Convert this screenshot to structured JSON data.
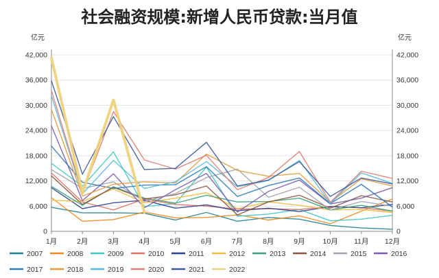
{
  "chart_data": {
    "type": "line",
    "title": "社会融资规模:新增人民币贷款:当月值",
    "unit_left": "亿元",
    "unit_right": "亿元",
    "categories": [
      "1月",
      "2月",
      "3月",
      "4月",
      "5月",
      "6月",
      "7月",
      "8月",
      "9月",
      "10月",
      "11月",
      "12月"
    ],
    "ylim": [
      0,
      42000
    ],
    "yticks": [
      0,
      6000,
      12000,
      18000,
      24000,
      30000,
      36000,
      42000
    ],
    "ytick_labels": [
      "0",
      "6,000",
      "12,000",
      "18,000",
      "24,000",
      "30,000",
      "36,000",
      "42,000"
    ],
    "grid": true,
    "legend_position": "bottom",
    "series": [
      {
        "name": "2007",
        "color": "#1f7f8f",
        "values": [
          5700,
          4400,
          4400,
          4300,
          2700,
          4500,
          2400,
          3300,
          2900,
          1400,
          800,
          500
        ]
      },
      {
        "name": "2008",
        "color": "#f0871a",
        "values": [
          8000,
          2400,
          2800,
          4600,
          3200,
          3300,
          3900,
          2700,
          3700,
          1800,
          4800,
          7700
        ]
      },
      {
        "name": "2009",
        "color": "#3fc6c6",
        "values": [
          16200,
          10700,
          18900,
          5900,
          6600,
          15300,
          3600,
          4100,
          5200,
          2500,
          2900,
          3800
        ]
      },
      {
        "name": "2010",
        "color": "#de6f62",
        "values": [
          13900,
          7000,
          5100,
          7700,
          6400,
          6000,
          5300,
          5400,
          5200,
          5900,
          5600,
          4800
        ]
      },
      {
        "name": "2011",
        "color": "#2c3f8c",
        "values": [
          10400,
          5400,
          6800,
          7400,
          5500,
          6300,
          4900,
          5500,
          4700,
          5900,
          5600,
          6400
        ]
      },
      {
        "name": "2012",
        "color": "#f2b838",
        "values": [
          7400,
          7100,
          10100,
          6800,
          7900,
          9200,
          5400,
          7000,
          6200,
          5100,
          5200,
          4500
        ]
      },
      {
        "name": "2013",
        "color": "#3aa07a",
        "values": [
          10700,
          6200,
          10600,
          7900,
          6700,
          8600,
          7000,
          7100,
          7900,
          5100,
          6200,
          4800
        ]
      },
      {
        "name": "2014",
        "color": "#8a5540",
        "values": [
          13200,
          6400,
          10500,
          7700,
          8700,
          10800,
          3900,
          7000,
          8600,
          5500,
          8500,
          7000
        ]
      },
      {
        "name": "2015",
        "color": "#9ea3ad",
        "values": [
          14700,
          10200,
          11800,
          7100,
          9000,
          12800,
          14800,
          8100,
          10500,
          5100,
          7100,
          6000
        ]
      },
      {
        "name": "2016",
        "color": "#7a5bb0",
        "values": [
          25100,
          7300,
          13700,
          5600,
          9900,
          13800,
          4600,
          9500,
          12200,
          6500,
          7900,
          10400
        ]
      },
      {
        "name": "2017",
        "color": "#2e7ab8",
        "values": [
          20300,
          11700,
          10200,
          11000,
          11100,
          15400,
          8300,
          10900,
          12700,
          6600,
          11200,
          5800
        ]
      },
      {
        "name": "2018",
        "color": "#e39a3c",
        "values": [
          29000,
          8400,
          11200,
          11800,
          11500,
          18400,
          14500,
          13100,
          13800,
          6900,
          12500,
          10800
        ]
      },
      {
        "name": "2019",
        "color": "#57b9dc",
        "values": [
          32300,
          8900,
          16900,
          10200,
          11800,
          16600,
          10600,
          12100,
          16900,
          6600,
          13900,
          11400
        ]
      },
      {
        "name": "2020",
        "color": "#e07b70",
        "values": [
          33500,
          9100,
          28500,
          17000,
          14800,
          18100,
          9900,
          12800,
          19000,
          6900,
          14300,
          12600
        ]
      },
      {
        "name": "2021",
        "color": "#3a5a9c",
        "values": [
          35800,
          13600,
          27300,
          14700,
          15000,
          21200,
          10800,
          12200,
          16600,
          8300,
          12700,
          11300
        ]
      },
      {
        "name": "2022",
        "color": "#eed27c",
        "values": [
          41300,
          9100,
          31300,
          4500,
          null,
          null,
          null,
          null,
          null,
          null,
          null,
          null
        ]
      }
    ]
  }
}
